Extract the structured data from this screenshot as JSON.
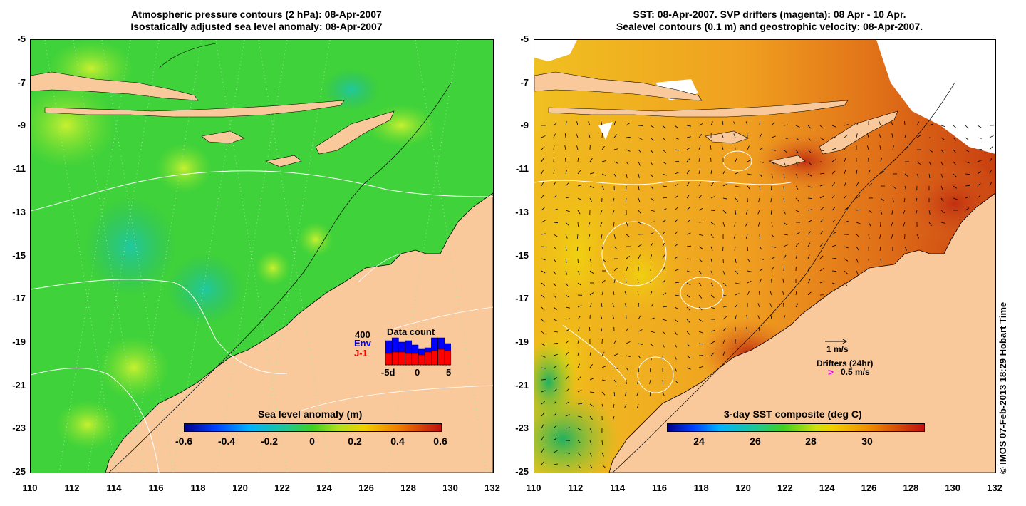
{
  "left_title": {
    "line1": "Atmospheric pressure contours (2 hPa): 08-Apr-2007",
    "line2": "Isostatically adjusted sea level anomaly: 08-Apr-2007"
  },
  "right_title": {
    "line1": "SST: 08-Apr-2007. SVP drifters (magenta): 08 Apr - 10 Apr.",
    "line2": "Sealevel contours (0.1 m) and geostrophic velocity: 08-Apr-2007."
  },
  "lat_ticks": [
    "-5",
    "-7",
    "-9",
    "-11",
    "-13",
    "-15",
    "-17",
    "-19",
    "-21",
    "-23",
    "-25"
  ],
  "lon_ticks": [
    "110",
    "112",
    "114",
    "116",
    "118",
    "120",
    "122",
    "124",
    "126",
    "128",
    "130",
    "132"
  ],
  "left_colorbar": {
    "title": "Sea level anomaly (m)",
    "ticks": [
      "-0.6",
      "-0.4",
      "-0.2",
      "0",
      "0.2",
      "0.4",
      "0.6"
    ]
  },
  "right_colorbar": {
    "title": "3-day SST composite (deg C)",
    "ticks": [
      "24",
      "26",
      "28",
      "30"
    ]
  },
  "data_count": {
    "title": "Data count",
    "max_label": "400",
    "env_label": "Env",
    "j1_label": "J-1",
    "x_ticks": [
      "-5d",
      "0",
      "5"
    ],
    "env_heights": [
      0.85,
      0.95,
      0.8,
      0.85,
      0.7,
      0.55,
      0.6,
      0.95,
      0.95,
      0.75
    ],
    "j1_heights": [
      0.4,
      0.45,
      0.45,
      0.4,
      0.4,
      0.35,
      0.45,
      0.5,
      0.55,
      0.5
    ]
  },
  "legend": {
    "vector_label": "1 m/s",
    "drifters_label": "Drifters (24hr)",
    "drifter_speed_label": "0.5 m/s",
    "drifter_symbol": ">"
  },
  "credit": "© IMOS 07-Feb-2013 18:29 Hobart Time",
  "colors": {
    "land": "#f9c99c",
    "sla_base": "#3fd23a",
    "sst_base": "#f0a020",
    "env": "#0000ff",
    "j1": "#ff0000",
    "drifter": "#ff00ff"
  }
}
